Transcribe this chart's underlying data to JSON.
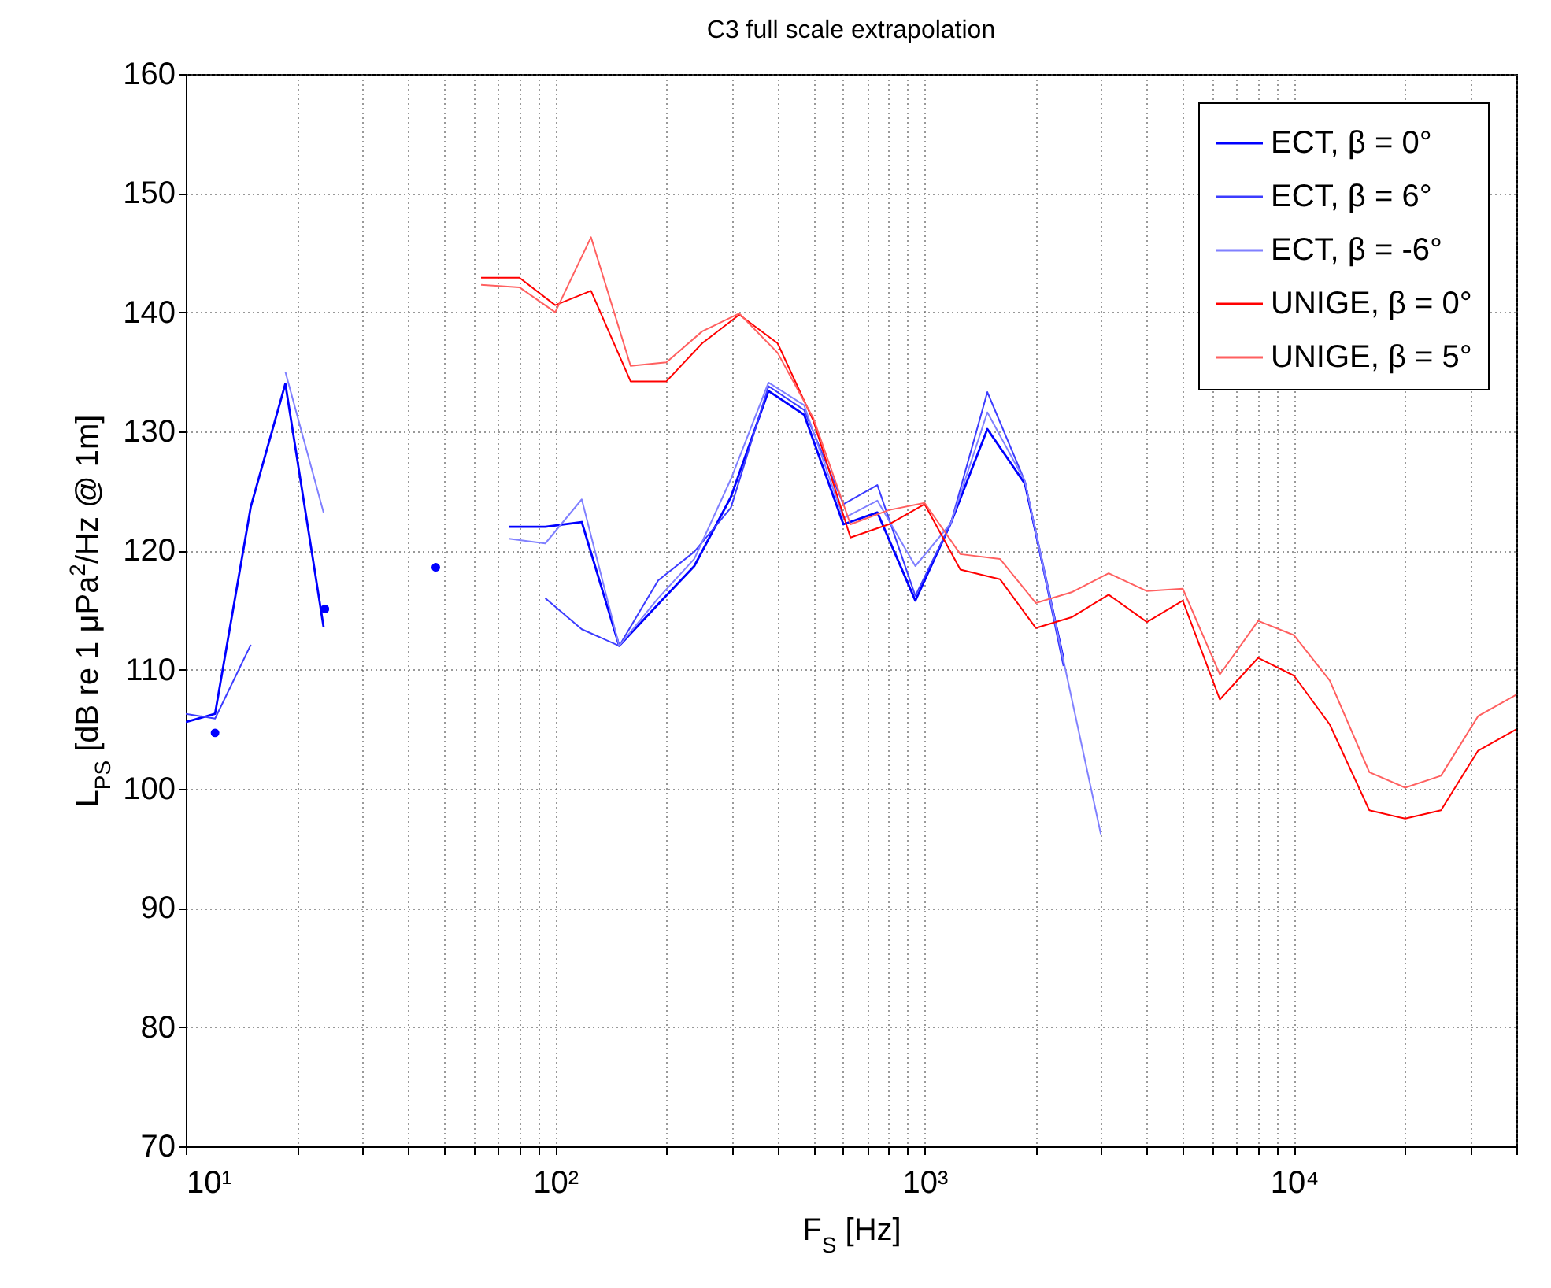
{
  "chart_data": {
    "type": "line",
    "title": "C3 full scale extrapolation",
    "xlabel": "F$_{S}$ [Hz]",
    "ylabel": "L$_{PS}$ [dB re 1 μPa$^{2}$/Hz @ 1m]",
    "log": "x",
    "grid": true,
    "legend": "top right",
    "xlim": [
      10,
      40000
    ],
    "ylim": [
      70,
      160
    ],
    "xticks": [
      {
        "value": 10,
        "label": "10¹"
      },
      {
        "value": 20,
        "label": null
      },
      {
        "value": 30,
        "label": null
      },
      {
        "value": 40,
        "label": null
      },
      {
        "value": 50,
        "label": null
      },
      {
        "value": 60,
        "label": null
      },
      {
        "value": 70,
        "label": null
      },
      {
        "value": 80,
        "label": null
      },
      {
        "value": 90,
        "label": null
      },
      {
        "value": 100,
        "label": "10²"
      },
      {
        "value": 200,
        "label": null
      },
      {
        "value": 300,
        "label": null
      },
      {
        "value": 400,
        "label": null
      },
      {
        "value": 500,
        "label": null
      },
      {
        "value": 600,
        "label": null
      },
      {
        "value": 700,
        "label": null
      },
      {
        "value": 800,
        "label": null
      },
      {
        "value": 900,
        "label": null
      },
      {
        "value": 1000,
        "label": "10³"
      },
      {
        "value": 2000,
        "label": null
      },
      {
        "value": 3000,
        "label": null
      },
      {
        "value": 4000,
        "label": null
      },
      {
        "value": 5000,
        "label": null
      },
      {
        "value": 6000,
        "label": null
      },
      {
        "value": 7000,
        "label": null
      },
      {
        "value": 8000,
        "label": null
      },
      {
        "value": 9000,
        "label": null
      },
      {
        "value": 10000,
        "label": "10⁴"
      },
      {
        "value": 20000,
        "label": null
      },
      {
        "value": 30000,
        "label": null
      },
      {
        "value": 40000,
        "label": null
      }
    ],
    "yticks": [
      70,
      80,
      90,
      100,
      110,
      120,
      130,
      140,
      150,
      160
    ],
    "series": [
      {
        "name": "ECT, β = 0°",
        "color": "#0000ff",
        "x": [
          10,
          12,
          15,
          18.6,
          23.6,
          47,
          75,
          94,
          118,
          149,
          190,
          238,
          299,
          378,
          472,
          603,
          745,
          944,
          1178,
          1479,
          1870,
          2377
        ],
        "values": [
          105.6,
          106.3,
          123.7,
          134.0,
          113.6,
          null,
          122.0,
          122.0,
          122.4,
          112.0,
          115.5,
          118.7,
          124.5,
          133.4,
          131.4,
          122.2,
          123.2,
          115.8,
          122.3,
          130.2,
          125.6,
          110.9
        ]
      },
      {
        "name": "ECT, β = 6°",
        "color": "#3c3cff",
        "x": [
          10,
          12,
          15,
          47,
          94,
          118,
          149,
          190,
          238,
          299,
          378,
          472,
          603,
          745,
          944,
          1178,
          1479,
          1870,
          2377
        ],
        "values": [
          106.3,
          105.9,
          112.1,
          null,
          116.0,
          113.4,
          112.0,
          117.5,
          119.9,
          123.6,
          133.8,
          131.8,
          123.9,
          125.5,
          116.2,
          122.3,
          133.3,
          125.8,
          110.3
        ]
      },
      {
        "name": "ECT, β = -6°",
        "color": "#8080ff",
        "x": [
          18.6,
          23.6,
          47,
          75,
          94,
          118,
          149,
          190,
          238,
          299,
          378,
          472,
          603,
          745,
          944,
          1178,
          1479,
          1870,
          3000
        ],
        "values": [
          135.0,
          123.2,
          null,
          121.0,
          120.6,
          124.3,
          112.0,
          116.0,
          119.3,
          126.0,
          134.1,
          132.2,
          122.7,
          124.2,
          118.7,
          122.3,
          131.6,
          125.8,
          96.2
        ]
      },
      {
        "name": "UNIGE, β = 0°",
        "color": "#ff0000",
        "x": [
          63,
          80,
          100,
          125,
          160,
          200,
          250,
          315,
          400,
          500,
          630,
          800,
          1000,
          1250,
          1600,
          2000,
          2500,
          3150,
          4000,
          5000,
          6300,
          8000,
          10000,
          12500,
          16000,
          20000,
          25000,
          31500,
          40000
        ],
        "values": [
          142.9,
          142.9,
          140.6,
          141.8,
          134.2,
          134.2,
          137.4,
          139.8,
          137.4,
          130.9,
          121.1,
          122.2,
          123.9,
          118.4,
          117.6,
          113.5,
          114.4,
          116.3,
          114.0,
          115.8,
          107.5,
          111.0,
          109.5,
          105.4,
          98.2,
          97.5,
          98.2,
          103.2,
          105.0
        ]
      },
      {
        "name": "UNIGE, β = 5°",
        "color": "#ff6060",
        "x": [
          63,
          80,
          100,
          125,
          160,
          200,
          250,
          315,
          400,
          500,
          630,
          800,
          1000,
          1250,
          1600,
          2000,
          2500,
          3150,
          4000,
          5000,
          6300,
          8000,
          10000,
          12500,
          16000,
          20000,
          25000,
          31500,
          40000
        ],
        "values": [
          142.3,
          142.1,
          140.0,
          146.3,
          135.5,
          135.8,
          138.4,
          139.9,
          136.6,
          131.1,
          122.2,
          123.4,
          124.0,
          119.7,
          119.3,
          115.6,
          116.5,
          118.1,
          116.6,
          116.8,
          109.6,
          114.1,
          112.9,
          109.1,
          101.4,
          100.1,
          101.1,
          106.1,
          107.9
        ]
      },
      {
        "type": "scatter",
        "color": "#0000ff",
        "marker": "circle",
        "x": [
          12,
          23.8,
          47.5
        ],
        "values": [
          104.7,
          115.1,
          118.6
        ]
      }
    ]
  }
}
